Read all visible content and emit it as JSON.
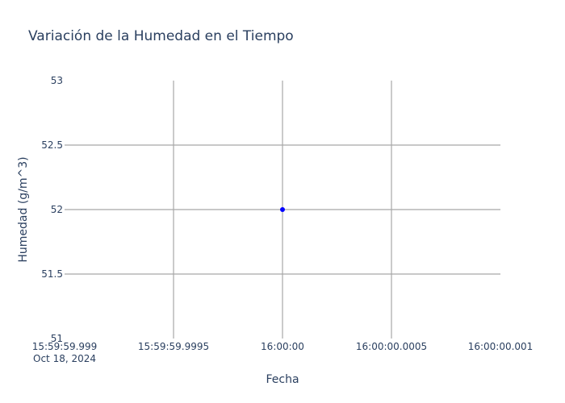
{
  "chart_data": {
    "type": "scatter",
    "title": "Variación de la Humedad en el Tiempo",
    "xlabel": "Fecha",
    "ylabel": "Humedad (g/m^3)",
    "x_ticks": [
      {
        "label": "15:59:59.999",
        "sublabel": "Oct 18, 2024",
        "value": 0
      },
      {
        "label": "15:59:59.9995",
        "sublabel": "",
        "value": 0.5
      },
      {
        "label": "16:00:00",
        "sublabel": "",
        "value": 1
      },
      {
        "label": "16:00:00.0005",
        "sublabel": "",
        "value": 1.5
      },
      {
        "label": "16:00:00.001",
        "sublabel": "",
        "value": 2
      }
    ],
    "y_ticks": [
      {
        "label": "51",
        "value": 51
      },
      {
        "label": "51.5",
        "value": 51.5
      },
      {
        "label": "52",
        "value": 52
      },
      {
        "label": "52.5",
        "value": 52.5
      },
      {
        "label": "53",
        "value": 53
      }
    ],
    "xlim": [
      "2024-10-18 15:59:59.999",
      "2024-10-18 16:00:00.001"
    ],
    "ylim": [
      51,
      53
    ],
    "grid": true,
    "series": [
      {
        "color": "#0000ff",
        "points": [
          {
            "x": "2024-10-18 16:00:00",
            "y": 52
          }
        ]
      }
    ]
  }
}
